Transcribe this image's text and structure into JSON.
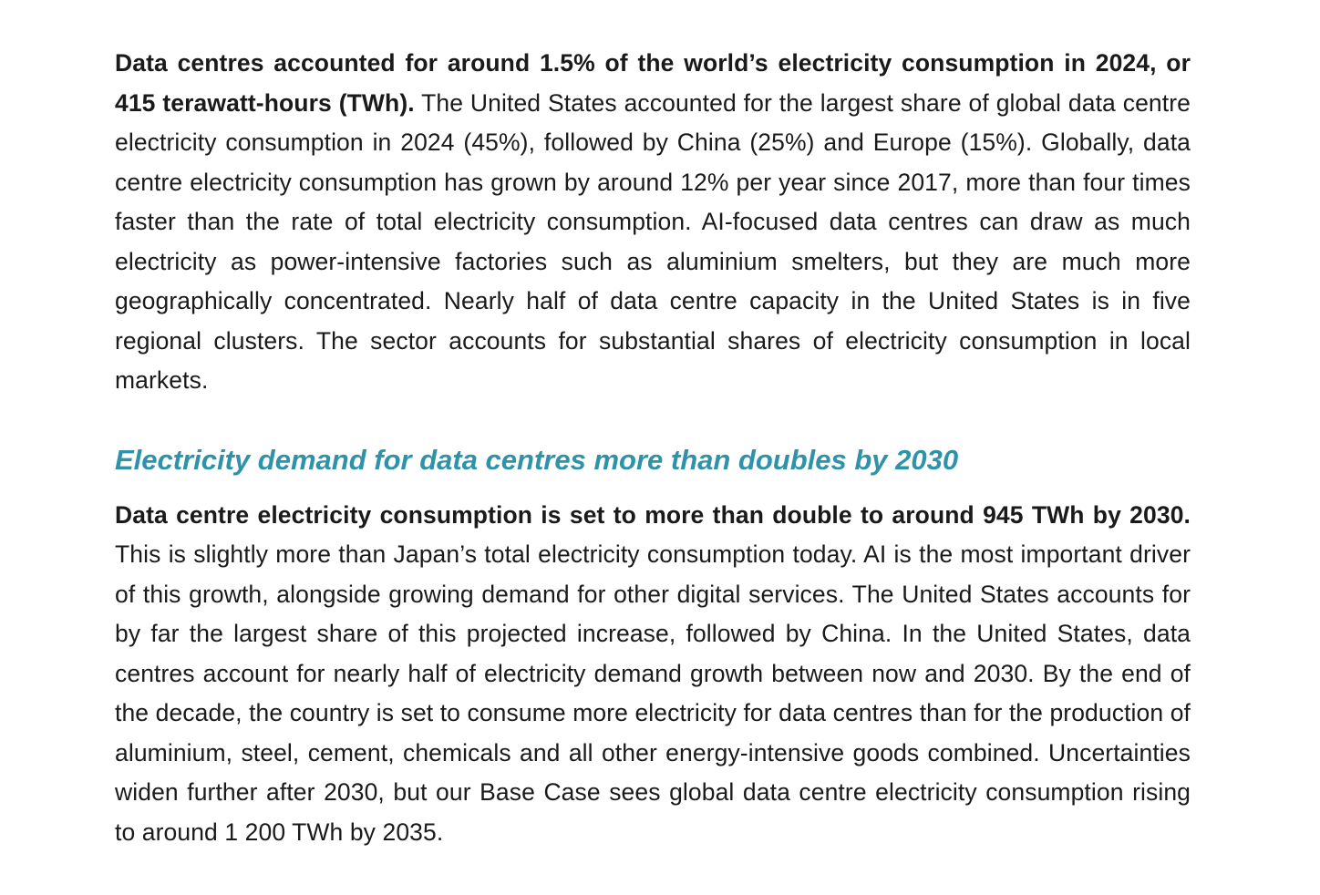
{
  "section1": {
    "lead": "Data centres accounted for around 1.5% of the world’s electricity consumption in 2024, or 415 terawatt-hours (TWh).",
    "body": " The United States accounted for the largest share of global data centre electricity consumption in 2024 (45%), followed by China (25%) and Europe (15%). Globally, data centre electricity consumption has grown by around 12% per year since 2017, more than four times faster than the rate of total electricity consumption. AI-focused data centres can draw as much electricity as power-intensive factories such as aluminium smelters, but they are much more geographically concentrated. Nearly half of data centre capacity in the United States is in five regional clusters. The sector accounts for substantial shares of electricity consumption in local markets."
  },
  "heading": "Electricity demand for data centres more than doubles by 2030",
  "section2": {
    "lead": "Data centre electricity consumption is set to more than double to around 945 TWh by 2030.",
    "body": " This is slightly more than Japan’s total electricity consumption today. AI is the most important driver of this growth, alongside growing demand for other digital services. The United States accounts for by far the largest share of this projected increase, followed by China. In the United States, data centres account for nearly half of electricity demand growth between now and 2030. By the end of the decade, the country is set to consume more electricity for data centres than for the production of aluminium, steel, cement, chemicals and all other energy-intensive goods combined. Uncertainties widen further after 2030, but our Base Case sees global data centre electricity consumption rising to around 1 200 TWh by 2035."
  },
  "colors": {
    "heading": "#2e93a8",
    "text": "#1a1a1a"
  }
}
